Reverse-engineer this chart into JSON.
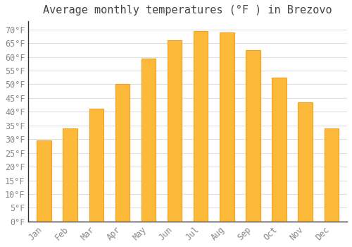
{
  "title": "Average monthly temperatures (°F ) in Brezovo",
  "months": [
    "Jan",
    "Feb",
    "Mar",
    "Apr",
    "May",
    "Jun",
    "Jul",
    "Aug",
    "Sep",
    "Oct",
    "Nov",
    "Dec"
  ],
  "values": [
    29.5,
    34.0,
    41.0,
    50.0,
    59.5,
    66.0,
    69.5,
    69.0,
    62.5,
    52.5,
    43.5,
    34.0
  ],
  "bar_color": "#FDB93A",
  "bar_edge_color": "#F0A020",
  "background_color": "#FFFFFF",
  "grid_color": "#E0E0E0",
  "text_color": "#888888",
  "title_color": "#444444",
  "ylim": [
    0,
    73
  ],
  "yticks": [
    0,
    5,
    10,
    15,
    20,
    25,
    30,
    35,
    40,
    45,
    50,
    55,
    60,
    65,
    70
  ],
  "title_fontsize": 11,
  "tick_fontsize": 8.5,
  "bar_width": 0.55
}
